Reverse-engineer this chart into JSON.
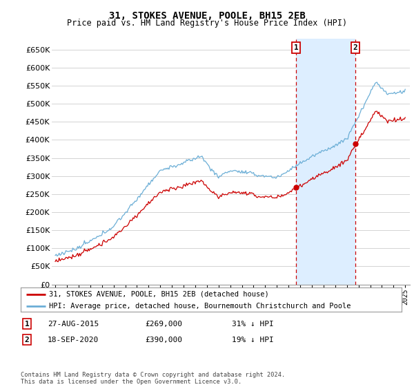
{
  "title": "31, STOKES AVENUE, POOLE, BH15 2EB",
  "subtitle": "Price paid vs. HM Land Registry's House Price Index (HPI)",
  "legend_line1": "31, STOKES AVENUE, POOLE, BH15 2EB (detached house)",
  "legend_line2": "HPI: Average price, detached house, Bournemouth Christchurch and Poole",
  "annotation1_date": "27-AUG-2015",
  "annotation1_price": "£269,000",
  "annotation1_hpi": "31% ↓ HPI",
  "annotation2_date": "18-SEP-2020",
  "annotation2_price": "£390,000",
  "annotation2_hpi": "19% ↓ HPI",
  "footer": "Contains HM Land Registry data © Crown copyright and database right 2024.\nThis data is licensed under the Open Government Licence v3.0.",
  "hpi_color": "#6baed6",
  "price_color": "#cc0000",
  "shade_color": "#ddeeff",
  "background_color": "#ffffff",
  "grid_color": "#cccccc",
  "ylim": [
    0,
    680000
  ],
  "yticks": [
    0,
    50000,
    100000,
    150000,
    200000,
    250000,
    300000,
    350000,
    400000,
    450000,
    500000,
    550000,
    600000,
    650000
  ],
  "sale1_year": 2015.65,
  "sale1_price": 269000,
  "sale2_year": 2020.72,
  "sale2_price": 390000
}
